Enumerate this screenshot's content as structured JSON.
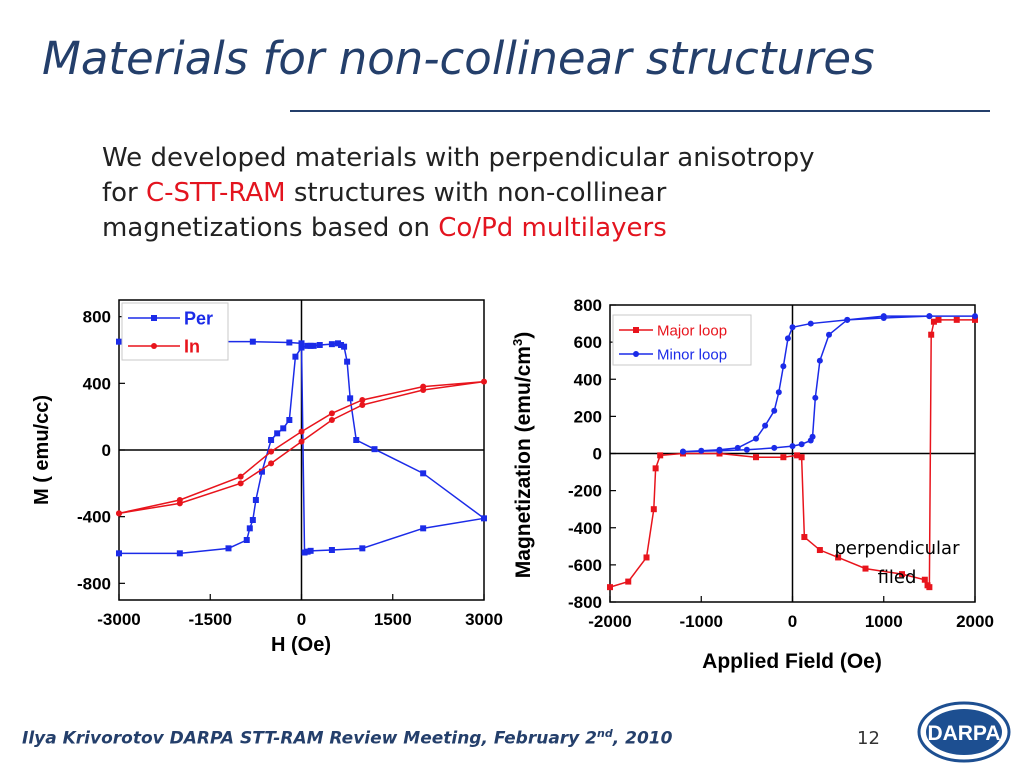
{
  "slide": {
    "title": "Materials for non-collinear structures",
    "intro": {
      "l1": "We developed materials with perpendicular anisotropy",
      "l2a": "for ",
      "l2_hl": "C-STT-RAM",
      "l2b": " structures with non-collinear",
      "l3a": "magnetizations based on ",
      "l3_hl": "Co/Pd multilayers"
    },
    "footer": {
      "main": "Ilya Krivorotov  DARPA STT-RAM Review Meeting, February 2",
      "sup": "nd",
      "tail": ", 2010"
    },
    "page_number": "12",
    "logo_text": "DARPA",
    "colors": {
      "title": "#243f6b",
      "highlight": "#e3141f",
      "series_blue": "#1b2be8",
      "series_red": "#e8141c"
    }
  },
  "chart_data": [
    {
      "type": "line",
      "xlabel": "H (Oe)",
      "ylabel": "M ( emu/cc)",
      "xlim": [
        -3000,
        3000
      ],
      "ylim": [
        -900,
        900
      ],
      "xticks": [
        "-3000",
        "-1500",
        "0",
        "1500",
        "3000"
      ],
      "xtick_values": [
        -3000,
        -1500,
        0,
        1500,
        3000
      ],
      "yticks": [
        "800",
        "400",
        "0",
        "-400",
        "-800"
      ],
      "ytick_values": [
        800,
        400,
        0,
        -400,
        -800
      ],
      "legend_position": "top-left",
      "series": [
        {
          "name": "Per",
          "color": "#1b2be8",
          "marker": "square",
          "x": [
            -3000,
            -2000,
            -1200,
            -900,
            -850,
            -800,
            -750,
            -650,
            -500,
            -400,
            -300,
            -200,
            -100,
            0,
            100,
            150,
            200,
            300,
            500,
            600,
            650,
            700,
            750,
            800,
            900,
            1200,
            2000,
            3000,
            2000,
            1000,
            500,
            150,
            100,
            50,
            0,
            -200,
            -800,
            -1500,
            -2000,
            -3000
          ],
          "y": [
            -620,
            -620,
            -590,
            -540,
            -470,
            -420,
            -300,
            -130,
            60,
            100,
            130,
            180,
            560,
            615,
            625,
            625,
            625,
            630,
            635,
            640,
            630,
            620,
            530,
            310,
            60,
            5,
            -140,
            -410,
            -470,
            -590,
            -600,
            -605,
            -610,
            -615,
            640,
            645,
            650,
            650,
            650,
            650
          ]
        },
        {
          "name": "In",
          "color": "#e8141c",
          "marker": "circle",
          "x": [
            -3000,
            -2000,
            -1000,
            -500,
            0,
            500,
            1000,
            2000,
            3000,
            2000,
            1000,
            500,
            0,
            -500,
            -1000,
            -2000,
            -3000
          ],
          "y": [
            -380,
            -320,
            -200,
            -80,
            50,
            180,
            270,
            360,
            410,
            380,
            300,
            220,
            110,
            -10,
            -160,
            -300,
            -380
          ]
        }
      ]
    },
    {
      "type": "line",
      "xlabel": "Applied Field (Oe)",
      "ylabel": "Magnetization (emu/cm",
      "ylabel_sup": "3",
      "ylabel_close": ")",
      "xlim": [
        -2000,
        2000
      ],
      "ylim": [
        -800,
        800
      ],
      "xticks": [
        "-2000",
        "-1000",
        "0",
        "1000",
        "2000"
      ],
      "xtick_values": [
        -2000,
        -1000,
        0,
        1000,
        2000
      ],
      "yticks": [
        "800",
        "600",
        "400",
        "200",
        "0",
        "-200",
        "-400",
        "-600",
        "-800"
      ],
      "ytick_values": [
        800,
        600,
        400,
        200,
        0,
        -200,
        -400,
        -600,
        -800
      ],
      "legend_position": "top-left",
      "annotation": {
        "line1": "perpendicular",
        "line2": "filed"
      },
      "series": [
        {
          "name": "Major loop",
          "color": "#e8141c",
          "marker": "square",
          "x": [
            -2000,
            -1800,
            -1600,
            -1520,
            -1500,
            -1450,
            -1200,
            -800,
            -400,
            -100,
            50,
            100,
            130,
            300,
            500,
            800,
            1200,
            1450,
            1480,
            1500,
            1520,
            1550,
            1600,
            1800,
            2000
          ],
          "y": [
            -720,
            -690,
            -560,
            -300,
            -80,
            -10,
            0,
            0,
            -20,
            -20,
            -10,
            -20,
            -450,
            -520,
            -560,
            -620,
            -650,
            -680,
            -710,
            -720,
            640,
            710,
            720,
            720,
            720
          ]
        },
        {
          "name": "Minor loop",
          "color": "#1b2be8",
          "marker": "circle",
          "x": [
            -1200,
            -1000,
            -800,
            -600,
            -400,
            -300,
            -200,
            -150,
            -100,
            -50,
            0,
            200,
            600,
            1000,
            1500,
            2000,
            1500,
            1000,
            600,
            400,
            300,
            250,
            220,
            200,
            100,
            0,
            -200,
            -500,
            -800,
            -1200
          ],
          "y": [
            10,
            15,
            20,
            30,
            80,
            150,
            230,
            330,
            470,
            620,
            680,
            700,
            720,
            730,
            740,
            740,
            740,
            740,
            720,
            640,
            500,
            300,
            90,
            70,
            50,
            40,
            30,
            20,
            15,
            10
          ]
        }
      ]
    }
  ]
}
